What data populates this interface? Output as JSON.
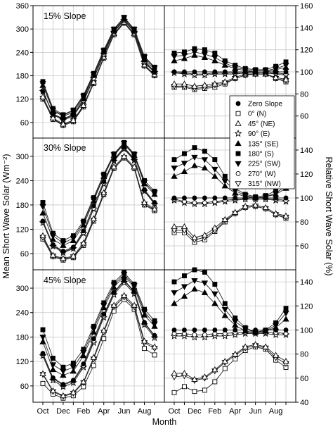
{
  "chart_data": {
    "type": "line",
    "xlabel": "Month",
    "ylabel_left": "Mean Short Wave Solar (Wm⁻²)",
    "ylabel_right": "Relative Short Wave Solar (%)",
    "x_ticks": [
      "Oct",
      "Dec",
      "Feb",
      "Apr",
      "Jun",
      "Aug"
    ],
    "x_grid_months": [
      "Oct",
      "Nov",
      "Dec",
      "Jan",
      "Feb",
      "Mar",
      "Apr",
      "May",
      "Jun",
      "Jul",
      "Aug",
      "Sep"
    ],
    "x_points": [
      "Oct",
      "Nov",
      "Dec",
      "Jan",
      "Feb",
      "Mar",
      "Apr",
      "May",
      "Jun",
      "Jul",
      "Aug",
      "Sep"
    ],
    "left_yticks": [
      [
        60,
        120,
        180,
        240,
        300,
        360
      ],
      [
        60,
        120,
        180,
        240,
        300
      ],
      [
        60,
        120,
        180,
        240,
        300
      ]
    ],
    "right_yticks": [
      [
        60,
        80,
        100,
        120,
        140,
        160
      ],
      [
        60,
        80,
        100,
        120,
        140
      ],
      [
        40,
        60,
        80,
        100,
        120,
        140
      ]
    ],
    "left_ylim": [
      [
        20,
        360
      ],
      [
        20,
        345
      ],
      [
        20,
        345
      ]
    ],
    "right_ylim": [
      [
        40,
        160
      ],
      [
        40,
        150
      ],
      [
        40,
        150
      ]
    ],
    "legend": [
      {
        "key": "zero",
        "label": "Zero Slope",
        "dir": ""
      },
      {
        "key": "n",
        "label": "0",
        "deg": true,
        "dir": "(N)"
      },
      {
        "key": "ne",
        "label": "45",
        "deg": true,
        "dir": "(NE)"
      },
      {
        "key": "e",
        "label": "90",
        "deg": true,
        "dir": "(E)"
      },
      {
        "key": "se",
        "label": "135",
        "deg": true,
        "dir": "(SE)"
      },
      {
        "key": "s",
        "label": "180",
        "deg": true,
        "dir": "(S)"
      },
      {
        "key": "sw",
        "label": "225",
        "deg": true,
        "dir": "(SW)"
      },
      {
        "key": "w",
        "label": "270",
        "deg": true,
        "dir": "(W)"
      },
      {
        "key": "nw",
        "label": "315",
        "deg": true,
        "dir": "(NW)"
      }
    ],
    "panels": [
      {
        "title": "15% Slope",
        "left": {
          "zero": [
            140,
            82,
            70,
            80,
            120,
            180,
            240,
            295,
            325,
            295,
            220,
            190
          ],
          "n": [
            120,
            68,
            52,
            62,
            100,
            160,
            225,
            285,
            315,
            285,
            205,
            180
          ],
          "ne": [
            126,
            72,
            56,
            66,
            104,
            164,
            228,
            288,
            318,
            288,
            208,
            183
          ],
          "e": [
            140,
            80,
            66,
            76,
            114,
            172,
            234,
            292,
            322,
            292,
            214,
            188
          ],
          "se": [
            155,
            90,
            76,
            86,
            124,
            182,
            242,
            298,
            328,
            298,
            224,
            196
          ],
          "s": [
            165,
            96,
            80,
            92,
            130,
            186,
            246,
            300,
            330,
            300,
            230,
            202
          ],
          "sw": [
            160,
            92,
            78,
            90,
            127,
            184,
            244,
            299,
            329,
            299,
            228,
            200
          ],
          "w": [
            142,
            82,
            68,
            78,
            116,
            174,
            236,
            293,
            323,
            293,
            216,
            190
          ],
          "nw": [
            122,
            70,
            54,
            64,
            102,
            162,
            226,
            286,
            316,
            286,
            206,
            181
          ]
        },
        "right": {
          "zero": [
            100,
            100,
            100,
            100,
            100,
            100,
            100,
            100,
            100,
            100,
            100,
            100
          ],
          "n": [
            86,
            86,
            84,
            85,
            86,
            89,
            94,
            97,
            98,
            98,
            94,
            91
          ],
          "ne": [
            89,
            89,
            87,
            88,
            89,
            91,
            95,
            98,
            98,
            98,
            95,
            93
          ],
          "e": [
            99,
            98,
            97,
            97,
            98,
            98,
            98,
            99,
            99,
            99,
            98,
            97
          ],
          "se": [
            110,
            112,
            115,
            113,
            110,
            106,
            103,
            101,
            100,
            100,
            102,
            104
          ],
          "s": [
            117,
            118,
            121,
            120,
            117,
            110,
            106,
            103,
            102,
            102,
            105,
            109
          ],
          "sw": [
            114,
            115,
            118,
            116,
            113,
            108,
            104,
            102,
            101,
            101,
            103,
            106
          ],
          "w": [
            100,
            99,
            98,
            98,
            99,
            99,
            99,
            99,
            99,
            99,
            99,
            98
          ],
          "nw": [
            87,
            87,
            85,
            86,
            88,
            90,
            94,
            97,
            98,
            98,
            94,
            92
          ]
        }
      },
      {
        "title": "30% Slope",
        "left": {
          "zero": [
            140,
            82,
            66,
            76,
            116,
            178,
            238,
            292,
            322,
            294,
            218,
            186
          ],
          "n": [
            96,
            52,
            44,
            50,
            80,
            140,
            205,
            270,
            296,
            270,
            180,
            166
          ],
          "ne": [
            104,
            56,
            48,
            54,
            86,
            146,
            210,
            274,
            300,
            274,
            186,
            170
          ],
          "e": [
            136,
            78,
            62,
            72,
            110,
            170,
            232,
            288,
            318,
            290,
            214,
            182
          ],
          "se": [
            160,
            95,
            80,
            92,
            130,
            190,
            250,
            302,
            330,
            302,
            232,
            206
          ],
          "s": [
            186,
            110,
            92,
            104,
            140,
            198,
            256,
            306,
            334,
            306,
            240,
            214
          ],
          "sw": [
            176,
            104,
            86,
            98,
            136,
            194,
            252,
            304,
            332,
            304,
            236,
            210
          ],
          "w": [
            140,
            80,
            64,
            74,
            112,
            172,
            234,
            290,
            320,
            292,
            216,
            184
          ],
          "nw": [
            100,
            54,
            46,
            52,
            82,
            142,
            206,
            271,
            297,
            271,
            182,
            168
          ]
        },
        "right": {
          "zero": [
            100,
            100,
            100,
            100,
            100,
            100,
            100,
            100,
            100,
            100,
            100,
            100
          ],
          "n": [
            71,
            71,
            63,
            65,
            72,
            80,
            87,
            92,
            93,
            91,
            86,
            83
          ],
          "ne": [
            76,
            76,
            67,
            69,
            75,
            82,
            88,
            93,
            94,
            92,
            87,
            85
          ],
          "e": [
            98,
            96,
            95,
            95,
            96,
            97,
            98,
            99,
            99,
            99,
            98,
            97
          ],
          "se": [
            118,
            122,
            127,
            125,
            118,
            110,
            104,
            101,
            100,
            101,
            103,
            108
          ],
          "s": [
            132,
            137,
            142,
            139,
            132,
            118,
            108,
            103,
            101,
            102,
            106,
            113
          ],
          "sw": [
            125,
            129,
            134,
            132,
            124,
            114,
            106,
            102,
            100,
            101,
            104,
            110
          ],
          "w": [
            99,
            97,
            96,
            96,
            97,
            98,
            99,
            99,
            99,
            99,
            99,
            98
          ],
          "nw": [
            73,
            73,
            65,
            67,
            73,
            81,
            87,
            92,
            93,
            91,
            86,
            84
          ]
        }
      },
      {
        "title": "45% Slope",
        "left": {
          "zero": [
            140,
            80,
            64,
            74,
            114,
            176,
            236,
            290,
            320,
            292,
            216,
            184
          ],
          "n": [
            66,
            40,
            30,
            36,
            58,
            110,
            176,
            244,
            272,
            248,
            152,
            136
          ],
          "ne": [
            90,
            48,
            36,
            44,
            70,
            130,
            196,
            258,
            282,
            258,
            170,
            156
          ],
          "e": [
            134,
            74,
            58,
            68,
            106,
            166,
            228,
            284,
            314,
            286,
            210,
            178
          ],
          "se": [
            168,
            100,
            86,
            96,
            134,
            192,
            252,
            302,
            330,
            302,
            234,
            206
          ],
          "s": [
            198,
            128,
            106,
            116,
            150,
            206,
            264,
            314,
            338,
            310,
            248,
            220
          ],
          "sw": [
            180,
            112,
            96,
            106,
            142,
            200,
            258,
            308,
            334,
            306,
            242,
            212
          ],
          "w": [
            138,
            78,
            62,
            72,
            110,
            170,
            232,
            288,
            318,
            290,
            214,
            182
          ],
          "nw": [
            88,
            46,
            34,
            42,
            68,
            126,
            192,
            254,
            278,
            254,
            166,
            152
          ]
        },
        "right": {
          "zero": [
            100,
            100,
            100,
            100,
            100,
            100,
            100,
            100,
            100,
            100,
            100,
            100
          ],
          "n": [
            48,
            53,
            49,
            50,
            57,
            68,
            76,
            83,
            86,
            84,
            75,
            69
          ],
          "ne": [
            64,
            64,
            59,
            61,
            67,
            74,
            80,
            86,
            88,
            86,
            79,
            74
          ],
          "e": [
            95,
            95,
            94,
            94,
            95,
            95,
            96,
            97,
            97,
            97,
            96,
            96
          ],
          "se": [
            122,
            128,
            134,
            131,
            122,
            112,
            104,
            99,
            98,
            99,
            102,
            109
          ],
          "s": [
            140,
            145,
            150,
            148,
            138,
            122,
            110,
            102,
            98,
            100,
            106,
            118
          ],
          "sw": [
            131,
            136,
            141,
            139,
            130,
            117,
            107,
            101,
            98,
            99,
            104,
            114
          ],
          "w": [
            97,
            97,
            96,
            96,
            97,
            97,
            98,
            98,
            98,
            98,
            98,
            97
          ],
          "nw": [
            61,
            62,
            58,
            60,
            66,
            73,
            79,
            85,
            87,
            85,
            77,
            72
          ]
        }
      }
    ]
  }
}
